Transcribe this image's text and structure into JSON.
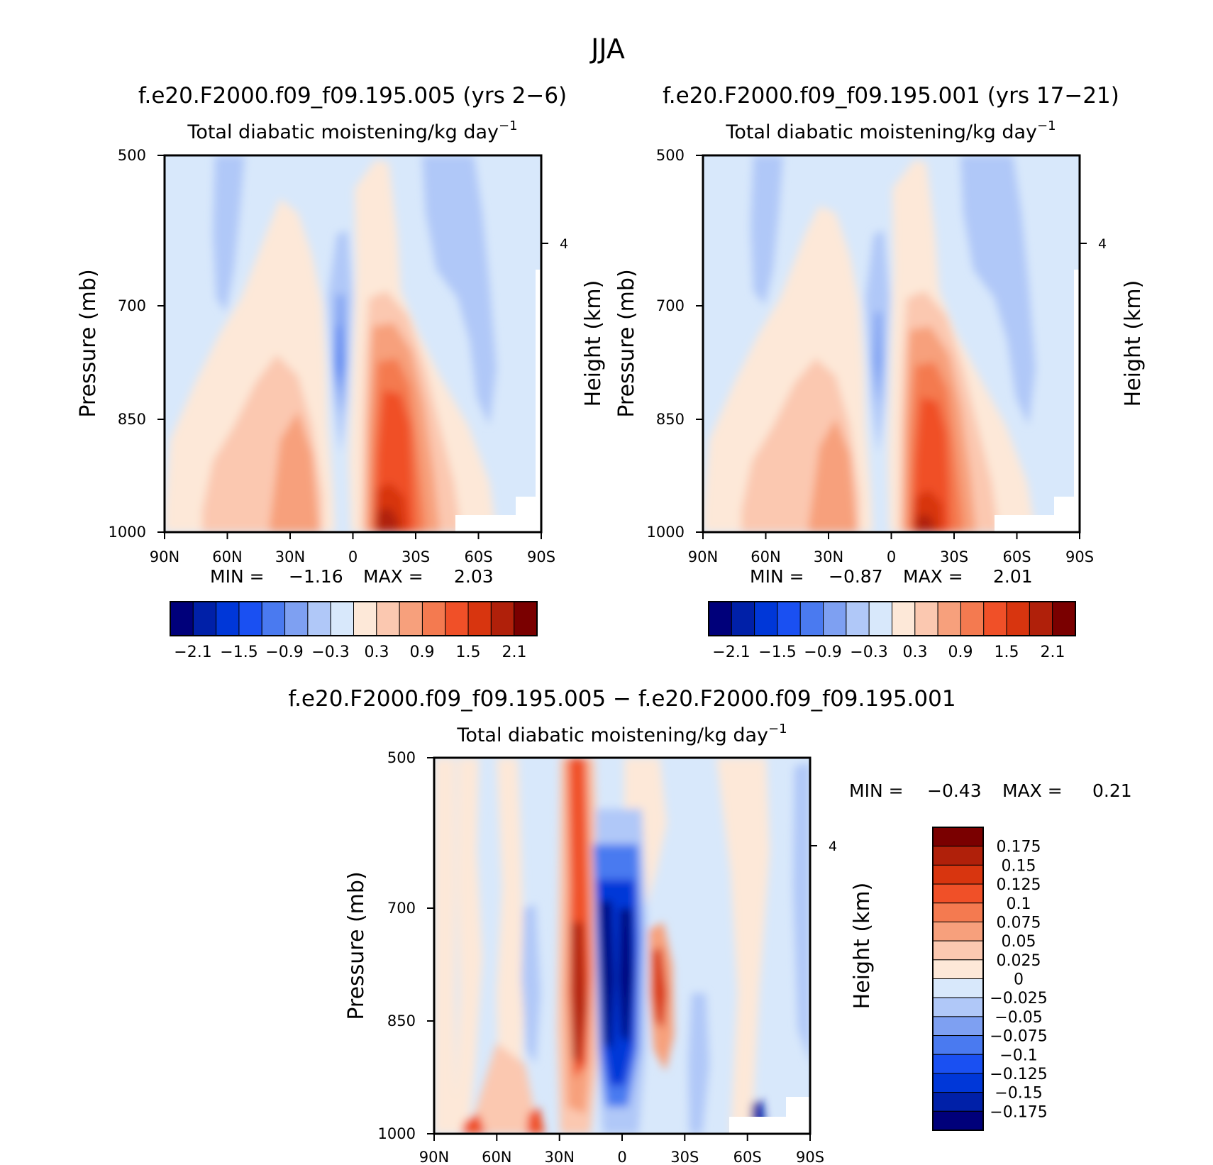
{
  "figure_title": "JJA",
  "chart_data": [
    {
      "type": "heatmap",
      "panel": "top-left",
      "title": "f.e20.F2000.f09_f09.195.005 (yrs 2−6)",
      "subtitle": "Total diabatic moistening/kg day",
      "subtitle_exp": "−1",
      "xlabel": "",
      "ylabel": "Pressure (mb)",
      "y2label": "Height (km)",
      "xticks": [
        "90N",
        "60N",
        "30N",
        "0",
        "30S",
        "60S",
        "90S"
      ],
      "yticks": [
        "500",
        "700",
        "850",
        "1000"
      ],
      "y2ticks": [
        "4"
      ],
      "min_label": "MIN =",
      "min_value": "−1.16",
      "max_label": "MAX =",
      "max_value": "2.03",
      "colorbar_labels": [
        "−2.1",
        "−1.5",
        "−0.9",
        "−0.3",
        "0.3",
        "0.9",
        "1.5",
        "2.1"
      ]
    },
    {
      "type": "heatmap",
      "panel": "top-right",
      "title": "f.e20.F2000.f09_f09.195.001 (yrs 17−21)",
      "subtitle": "Total diabatic moistening/kg day",
      "subtitle_exp": "−1",
      "xlabel": "",
      "ylabel": "Pressure (mb)",
      "y2label": "Height (km)",
      "xticks": [
        "90N",
        "60N",
        "30N",
        "0",
        "30S",
        "60S",
        "90S"
      ],
      "yticks": [
        "500",
        "700",
        "850",
        "1000"
      ],
      "y2ticks": [
        "4"
      ],
      "min_label": "MIN =",
      "min_value": "−0.87",
      "max_label": "MAX =",
      "max_value": "2.01",
      "colorbar_labels": [
        "−2.1",
        "−1.5",
        "−0.9",
        "−0.3",
        "0.3",
        "0.9",
        "1.5",
        "2.1"
      ]
    },
    {
      "type": "heatmap",
      "panel": "bottom",
      "title": "f.e20.F2000.f09_f09.195.005 − f.e20.F2000.f09_f09.195.001",
      "subtitle": "Total diabatic moistening/kg day",
      "subtitle_exp": "−1",
      "xlabel": "",
      "ylabel": "Pressure (mb)",
      "y2label": "Height (km)",
      "xticks": [
        "90N",
        "60N",
        "30N",
        "0",
        "30S",
        "60S",
        "90S"
      ],
      "yticks": [
        "500",
        "700",
        "850",
        "1000"
      ],
      "y2ticks": [
        "4"
      ],
      "min_label": "MIN =",
      "min_value": "−0.43",
      "max_label": "MAX =",
      "max_value": "0.21",
      "colorbar_labels": [
        "0.175",
        "0.15",
        "0.125",
        "0.1",
        "0.075",
        "0.05",
        "0.025",
        "0",
        "−0.025",
        "−0.05",
        "−0.075",
        "−0.1",
        "−0.125",
        "−0.15",
        "−0.175"
      ]
    }
  ],
  "colors": {
    "scale": [
      "#00007a",
      "#0020a8",
      "#0037d8",
      "#1a50f2",
      "#4a7af0",
      "#7ea0f2",
      "#b0c8f8",
      "#d8e8fb",
      "#fde8d8",
      "#fbc8b0",
      "#f7a07c",
      "#f47a50",
      "#f05028",
      "#d8350f",
      "#b0200a",
      "#7a0000"
    ]
  }
}
